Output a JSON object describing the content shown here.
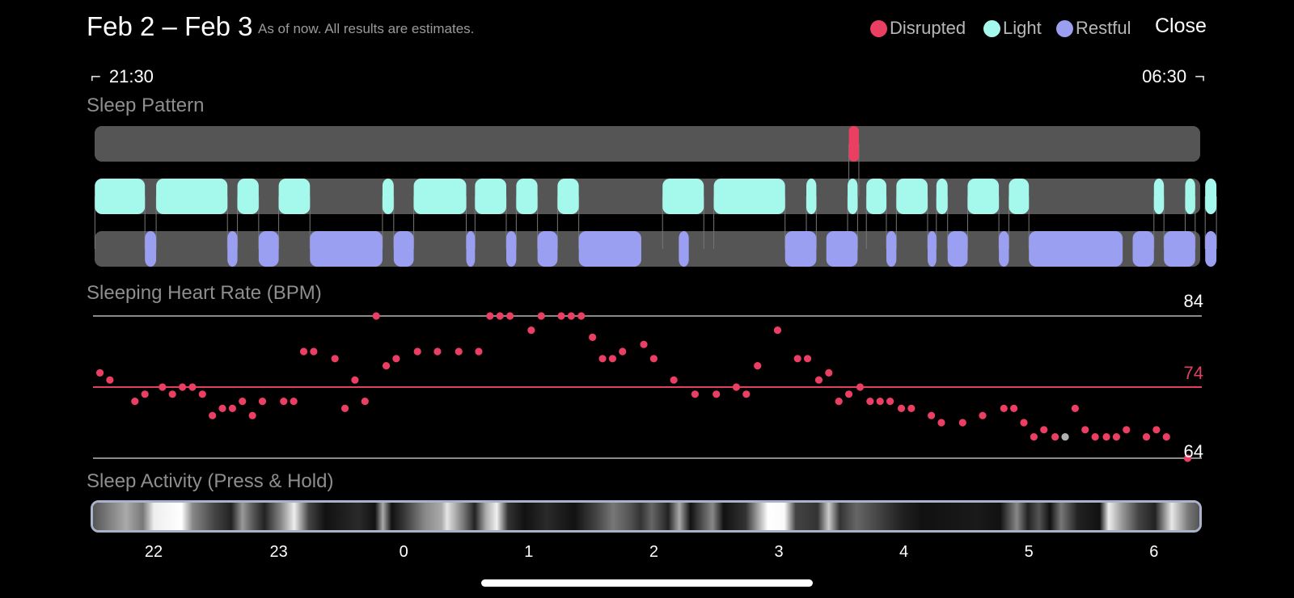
{
  "header": {
    "date_range": "Feb 2 – Feb 3",
    "subtitle": "As of now. All results are estimates.",
    "close_label": "Close"
  },
  "legend": [
    {
      "label": "Disrupted",
      "color": "#ea3f62"
    },
    {
      "label": "Light",
      "color": "#a4f9ec"
    },
    {
      "label": "Restful",
      "color": "#9b9ff1"
    }
  ],
  "time_range": {
    "start": "21:30",
    "end": "06:30"
  },
  "sections": {
    "sleep_pattern": "Sleep Pattern",
    "heart_rate": "Sleeping Heart Rate (BPM)",
    "activity": "Sleep Activity (Press & Hold)"
  },
  "colors": {
    "disrupted": "#ea3f62",
    "light": "#a4f9ec",
    "restful": "#9b9ff1",
    "track": "#555555",
    "gridline": "#8a8a8a",
    "avg_line": "#e0415f",
    "selected_point": "#b0b0b0"
  },
  "chart_data": {
    "type": "scatter",
    "x_unit": "hours from 22:00",
    "x_range": [
      -0.5,
      8.5
    ],
    "hour_ticks": [
      {
        "label": "22",
        "x": 0
      },
      {
        "label": "23",
        "x": 1
      },
      {
        "label": "0",
        "x": 2
      },
      {
        "label": "1",
        "x": 3
      },
      {
        "label": "2",
        "x": 4
      },
      {
        "label": "3",
        "x": 5
      },
      {
        "label": "4",
        "x": 6
      },
      {
        "label": "5",
        "x": 7
      },
      {
        "label": "6",
        "x": 8
      }
    ],
    "sleep_pattern": {
      "disrupted": [
        [
          5.56,
          5.64
        ]
      ],
      "light": [
        [
          -0.47,
          -0.07
        ],
        [
          0.02,
          0.59
        ],
        [
          0.67,
          0.84
        ],
        [
          1.0,
          1.25
        ],
        [
          1.83,
          1.92
        ],
        [
          2.08,
          2.5
        ],
        [
          2.57,
          2.82
        ],
        [
          2.9,
          3.07
        ],
        [
          3.23,
          3.4
        ],
        [
          4.07,
          4.4
        ],
        [
          4.48,
          5.05
        ],
        [
          5.22,
          5.3
        ],
        [
          5.55,
          5.63
        ],
        [
          5.7,
          5.86
        ],
        [
          5.94,
          6.19
        ],
        [
          6.26,
          6.35
        ],
        [
          6.51,
          6.76
        ],
        [
          6.84,
          7.0
        ],
        [
          8.0,
          8.08
        ],
        [
          8.25,
          8.33
        ],
        [
          8.41,
          8.5
        ]
      ],
      "restful": [
        [
          -0.07,
          0.02
        ],
        [
          0.59,
          0.67
        ],
        [
          0.84,
          1.0
        ],
        [
          1.25,
          1.83
        ],
        [
          1.92,
          2.08
        ],
        [
          2.5,
          2.57
        ],
        [
          2.82,
          2.9
        ],
        [
          3.07,
          3.23
        ],
        [
          3.4,
          3.9
        ],
        [
          4.2,
          4.28
        ],
        [
          5.05,
          5.3
        ],
        [
          5.38,
          5.63
        ],
        [
          5.86,
          5.94
        ],
        [
          6.19,
          6.26
        ],
        [
          6.35,
          6.51
        ],
        [
          6.76,
          6.84
        ],
        [
          7.0,
          7.75
        ],
        [
          7.83,
          8.0
        ],
        [
          8.08,
          8.33
        ],
        [
          8.41,
          8.5
        ]
      ]
    },
    "heart_rate": {
      "y_max": 84,
      "y_avg": 74,
      "y_min": 64,
      "selected_index": 73,
      "points": [
        [
          -0.43,
          76
        ],
        [
          -0.35,
          75
        ],
        [
          -0.15,
          72
        ],
        [
          -0.07,
          73
        ],
        [
          0.07,
          74
        ],
        [
          0.15,
          73
        ],
        [
          0.23,
          74
        ],
        [
          0.31,
          74
        ],
        [
          0.39,
          73
        ],
        [
          0.47,
          70
        ],
        [
          0.55,
          71
        ],
        [
          0.63,
          71
        ],
        [
          0.71,
          72
        ],
        [
          0.79,
          70
        ],
        [
          0.87,
          72
        ],
        [
          1.04,
          72
        ],
        [
          1.12,
          72
        ],
        [
          1.2,
          79
        ],
        [
          1.28,
          79
        ],
        [
          1.45,
          78
        ],
        [
          1.53,
          71
        ],
        [
          1.61,
          75
        ],
        [
          1.69,
          72
        ],
        [
          1.78,
          84
        ],
        [
          1.86,
          77
        ],
        [
          1.94,
          78
        ],
        [
          2.11,
          79
        ],
        [
          2.27,
          79
        ],
        [
          2.44,
          79
        ],
        [
          2.6,
          79
        ],
        [
          2.69,
          84
        ],
        [
          2.77,
          84
        ],
        [
          2.85,
          84
        ],
        [
          3.02,
          82
        ],
        [
          3.1,
          84
        ],
        [
          3.26,
          84
        ],
        [
          3.34,
          84
        ],
        [
          3.42,
          84
        ],
        [
          3.51,
          81
        ],
        [
          3.59,
          78
        ],
        [
          3.67,
          78
        ],
        [
          3.75,
          79
        ],
        [
          3.92,
          80
        ],
        [
          4.0,
          78
        ],
        [
          4.16,
          75
        ],
        [
          4.33,
          73
        ],
        [
          4.5,
          73
        ],
        [
          4.66,
          74
        ],
        [
          4.74,
          73
        ],
        [
          4.83,
          77
        ],
        [
          4.99,
          82
        ],
        [
          5.15,
          78
        ],
        [
          5.23,
          78
        ],
        [
          5.32,
          75
        ],
        [
          5.4,
          76
        ],
        [
          5.48,
          72
        ],
        [
          5.56,
          73
        ],
        [
          5.65,
          74
        ],
        [
          5.73,
          72
        ],
        [
          5.81,
          72
        ],
        [
          5.89,
          72
        ],
        [
          5.98,
          71
        ],
        [
          6.06,
          71
        ],
        [
          6.22,
          70
        ],
        [
          6.3,
          69
        ],
        [
          6.47,
          69
        ],
        [
          6.63,
          70
        ],
        [
          6.8,
          71
        ],
        [
          6.88,
          71
        ],
        [
          6.96,
          69
        ],
        [
          7.04,
          67
        ],
        [
          7.12,
          68
        ],
        [
          7.21,
          67
        ],
        [
          7.29,
          67
        ],
        [
          7.37,
          71
        ],
        [
          7.45,
          68
        ],
        [
          7.53,
          67
        ],
        [
          7.62,
          67
        ],
        [
          7.7,
          67
        ],
        [
          7.78,
          68
        ],
        [
          7.94,
          67
        ],
        [
          8.02,
          68
        ],
        [
          8.1,
          67
        ],
        [
          8.27,
          64
        ]
      ]
    }
  }
}
